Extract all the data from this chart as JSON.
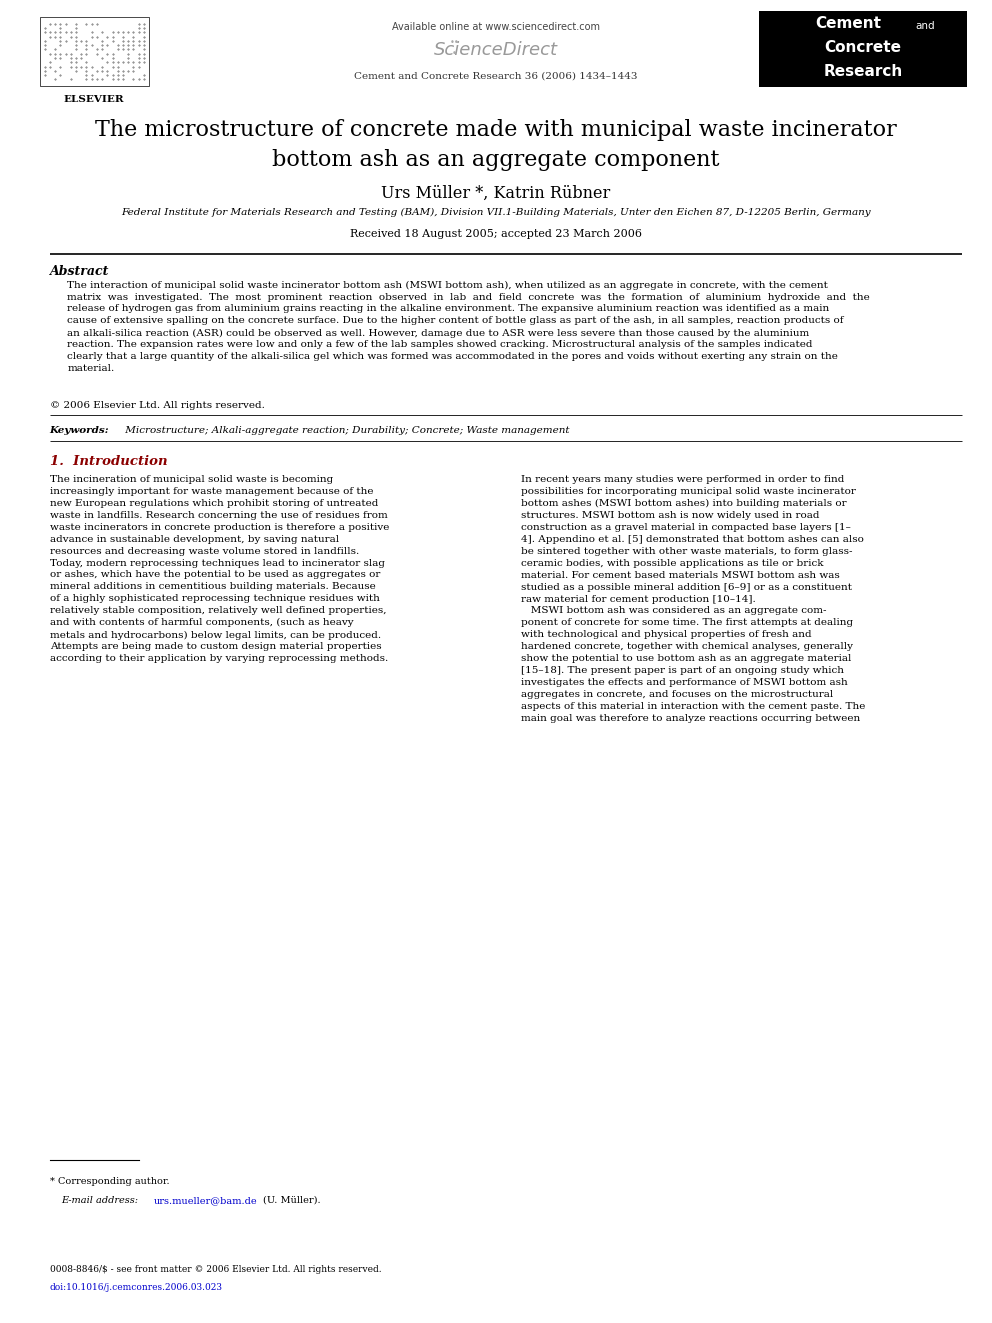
{
  "bg_color": "#ffffff",
  "page_width": 9.92,
  "page_height": 13.23,
  "header": {
    "available_online": "Available online at www.sciencedirect.com",
    "sciencedirect": "ScienceDirect",
    "journal_info": "Cement and Concrete Research 36 (2006) 1434–1443",
    "elsevier_label": "ELSEVIER",
    "journal_box_lines": [
      "Cement and",
      "Concrete",
      "Research"
    ]
  },
  "title": "The microstructure of concrete made with municipal waste incinerator\nbottom ash as an aggregate component",
  "authors": "Urs Müller *, Katrin Rübner",
  "affiliation": "Federal Institute for Materials Research and Testing (BAM), Division VII.1-Building Materials, Unter den Eichen 87, D-12205 Berlin, Germany",
  "received": "Received 18 August 2005; accepted 23 March 2006",
  "abstract_title": "Abstract",
  "abstract_text": "The interaction of municipal solid waste incinerator bottom ash (MSWI bottom ash), when utilized as an aggregate in concrete, with the cement\nmatrix  was  investigated.  The  most  prominent  reaction  observed  in  lab  and  field  concrete  was  the  formation  of  aluminium  hydroxide  and  the\nrelease of hydrogen gas from aluminium grains reacting in the alkaline environment. The expansive aluminium reaction was identified as a main\ncause of extensive spalling on the concrete surface. Due to the higher content of bottle glass as part of the ash, in all samples, reaction products of\nan alkali-silica reaction (ASR) could be observed as well. However, damage due to ASR were less severe than those caused by the aluminium\nreaction. The expansion rates were low and only a few of the lab samples showed cracking. Microstructural analysis of the samples indicated\nclearly that a large quantity of the alkali-silica gel which was formed was accommodated in the pores and voids without exerting any strain on the\nmaterial.",
  "copyright": "© 2006 Elsevier Ltd. All rights reserved.",
  "keywords_label": "Keywords:",
  "keywords_text": " Microstructure; Alkali-aggregate reaction; Durability; Concrete; Waste management",
  "section1_title": "1.  Introduction",
  "col1_intro": "The incineration of municipal solid waste is becoming\nincreasingly important for waste management because of the\nnew European regulations which prohibit storing of untreated\nwaste in landfills. Research concerning the use of residues from\nwaste incinerators in concrete production is therefore a positive\nadvance in sustainable development, by saving natural\nresources and decreasing waste volume stored in landfills.\nToday, modern reprocessing techniques lead to incinerator slag\nor ashes, which have the potential to be used as aggregates or\nmineral additions in cementitious building materials. Because\nof a highly sophisticated reprocessing technique residues with\nrelatively stable composition, relatively well defined properties,\nand with contents of harmful components, (such as heavy\nmetals and hydrocarbons) below legal limits, can be produced.\nAttempts are being made to custom design material properties\naccording to their application by varying reprocessing methods.",
  "col2_intro": "In recent years many studies were performed in order to find\npossibilities for incorporating municipal solid waste incinerator\nbottom ashes (MSWI bottom ashes) into building materials or\nstructures. MSWI bottom ash is now widely used in road\nconstruction as a gravel material in compacted base layers [1–\n4]. Appendino et al. [5] demonstrated that bottom ashes can also\nbe sintered together with other waste materials, to form glass-\nceramic bodies, with possible applications as tile or brick\nmaterial. For cement based materials MSWI bottom ash was\nstudied as a possible mineral addition [6–9] or as a constituent\nraw material for cement production [10–14].\n   MSWI bottom ash was considered as an aggregate com-\nponent of concrete for some time. The first attempts at dealing\nwith technological and physical properties of fresh and\nhardened concrete, together with chemical analyses, generally\nshow the potential to use bottom ash as an aggregate material\n[15–18]. The present paper is part of an ongoing study which\ninvestigates the effects and performance of MSWI bottom ash\naggregates in concrete, and focuses on the microstructural\naspects of this material in interaction with the cement paste. The\nmain goal was therefore to analyze reactions occurring between",
  "footnote_star": "* Corresponding author.",
  "footnote_email_label": "E-mail address:",
  "footnote_email": "urs.mueller@bam.de",
  "footnote_name": "(U. Müller).",
  "bottom_issn": "0008-8846/$ - see front matter © 2006 Elsevier Ltd. All rights reserved.",
  "bottom_doi": "doi:10.1016/j.cemconres.2006.03.023"
}
